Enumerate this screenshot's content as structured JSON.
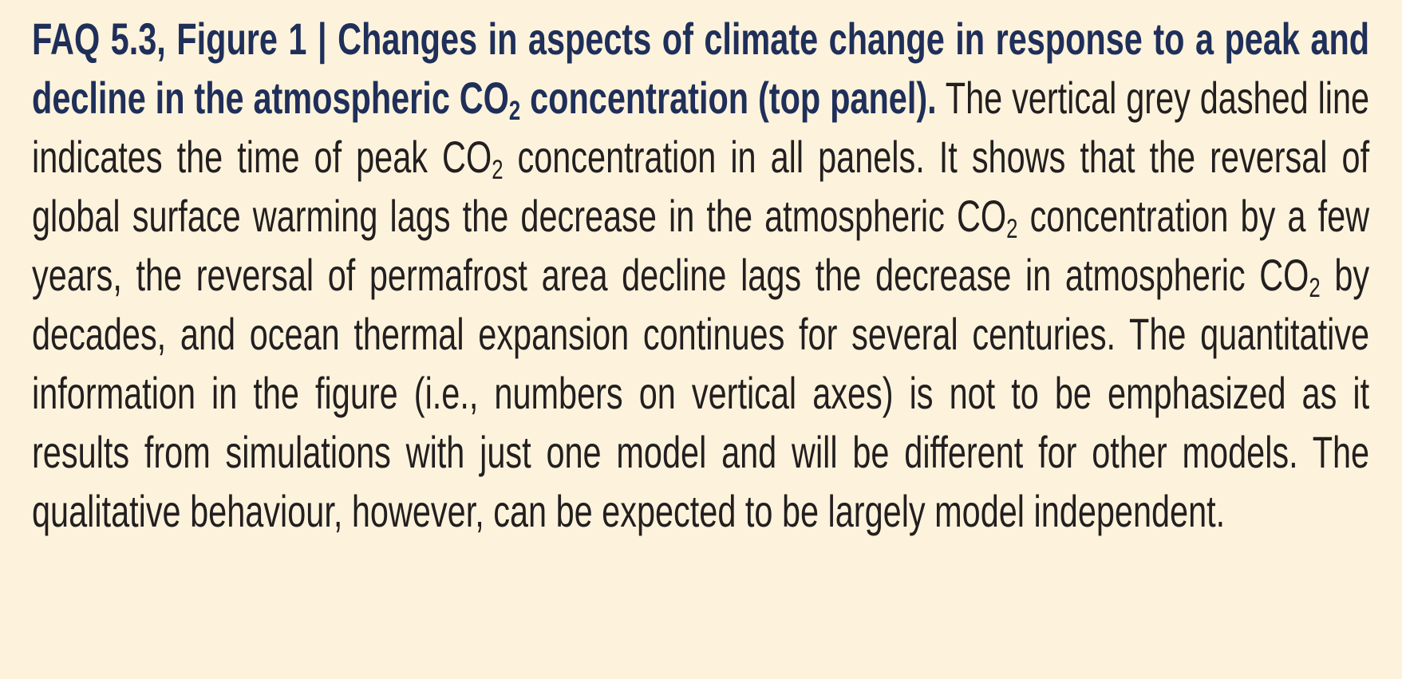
{
  "caption": {
    "label": "FAQ 5.3, Figure 1 |",
    "title": [
      {
        "text": "Changes in aspects of climate change in response to a peak and decline in the atmospheric CO"
      },
      {
        "sub": "2"
      },
      {
        "text": " concentration (top panel)."
      }
    ],
    "body": [
      {
        "text": "The vertical grey dashed line indicates the time of peak CO"
      },
      {
        "sub": "2"
      },
      {
        "text": " concentration in all panels. It shows that the reversal of global surface warming lags the decrease in the atmospheric CO"
      },
      {
        "sub": "2"
      },
      {
        "text": " concentration by a few years, the reversal of permafrost area decline lags the decrease in atmospheric CO"
      },
      {
        "sub": "2"
      },
      {
        "text": " by decades, and ocean thermal expansion continues for several centuries. The quantitative information in the figure (i.e., numbers on vertical axes) is not to be emphasized as it results from simulations with just one model and will be different for other models. The qualitative behaviour, however, can be expected to be largely model independent."
      }
    ]
  }
}
